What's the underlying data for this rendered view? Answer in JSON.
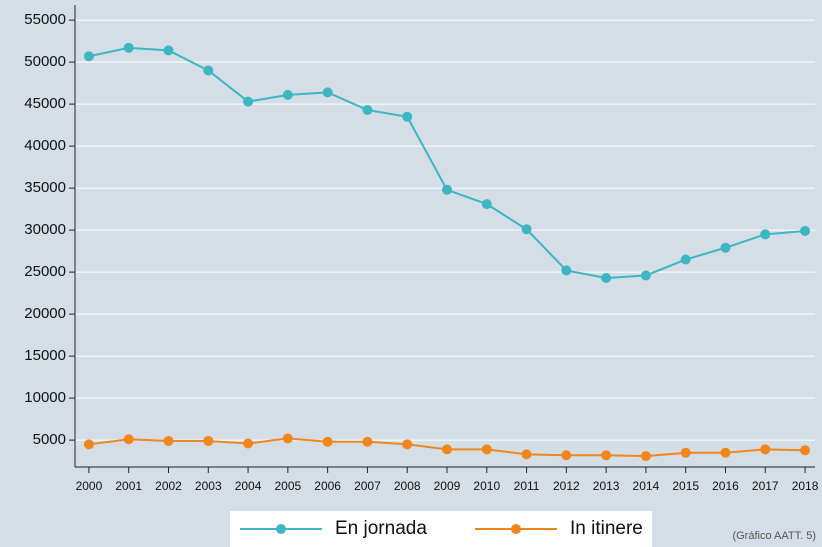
{
  "chart_data": {
    "type": "line",
    "x": [
      2000,
      2001,
      2002,
      2003,
      2004,
      2005,
      2006,
      2007,
      2008,
      2009,
      2010,
      2011,
      2012,
      2013,
      2014,
      2015,
      2016,
      2017,
      2018
    ],
    "series": [
      {
        "name": "En jornada",
        "color": "#3cb6c3",
        "values": [
          50700,
          51700,
          51400,
          49000,
          45300,
          46100,
          46400,
          44300,
          43500,
          34800,
          33100,
          30100,
          25200,
          24300,
          24600,
          26500,
          27900,
          29500,
          29900
        ]
      },
      {
        "name": "In itinere",
        "color": "#f0861c",
        "values": [
          4500,
          5100,
          4900,
          4900,
          4600,
          5200,
          4800,
          4800,
          4500,
          3900,
          3900,
          3300,
          3200,
          3200,
          3100,
          3500,
          3500,
          3900,
          3800
        ]
      }
    ],
    "xlim": [
      1999.65,
      2018.25
    ],
    "xticks": [
      2000,
      2001,
      2002,
      2003,
      2004,
      2005,
      2006,
      2007,
      2008,
      2009,
      2010,
      2011,
      2012,
      2013,
      2014,
      2015,
      2016,
      2017,
      2018
    ],
    "ylim": [
      1800,
      56800
    ],
    "yticks": [
      5000,
      10000,
      15000,
      20000,
      25000,
      30000,
      35000,
      40000,
      45000,
      50000,
      55000
    ],
    "grid": true,
    "legend": "bottom",
    "annotation": "(Gráfico AATT. 5)"
  }
}
